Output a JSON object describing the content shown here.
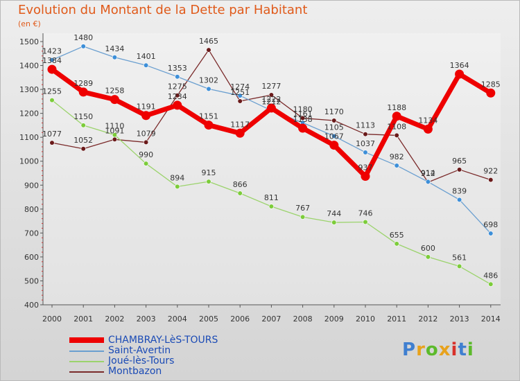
{
  "title": "Evolution du Montant de la Dette par Habitant",
  "subtitle": "(en €)",
  "logo": {
    "text": "Proxiti",
    "colors": [
      "#3f7fd0",
      "#e8a21c",
      "#5cba2b",
      "#e8a21c",
      "#d8302a",
      "#3f7fd0",
      "#5cba2b"
    ]
  },
  "chart_data": {
    "type": "line",
    "x": [
      "2000",
      "2001",
      "2002",
      "2003",
      "2004",
      "2005",
      "2006",
      "2007",
      "2008",
      "2009",
      "2010",
      "2011",
      "2012",
      "2013",
      "2014"
    ],
    "ylim": [
      400,
      1500
    ],
    "yticks": [
      400,
      500,
      600,
      700,
      800,
      900,
      1000,
      1100,
      1200,
      1300,
      1400,
      1500
    ],
    "grid": false,
    "legend_position": "bottom-left",
    "series": [
      {
        "name": "CHAMBRAY-LèS-TOURS",
        "color": "#ee0000",
        "marker_color": "#ee0000",
        "values": [
          1384,
          1289,
          1258,
          1191,
          1234,
          1151,
          1117,
          1222,
          1138,
          1067,
          937,
          1188,
          1134,
          1364,
          1285
        ],
        "labels": [
          "1384",
          "1289",
          "1258",
          "1191",
          "1234",
          "1151",
          "1117",
          "1222",
          "1138",
          "1067",
          "937",
          "1188",
          "1134",
          "1364",
          "1285"
        ]
      },
      {
        "name": "Saint-Avertin",
        "color": "#6a9fd0",
        "marker_color": "#3d8fd8",
        "values": [
          1423,
          1480,
          1434,
          1401,
          1353,
          1302,
          1274,
          1212,
          1161,
          1105,
          1037,
          982,
          914,
          839,
          698
        ],
        "labels": [
          "1423",
          "1480",
          "1434",
          "1401",
          "1353",
          "1302",
          "1274",
          "1212",
          "1161",
          "1105",
          "1037",
          "982",
          "914",
          "839",
          "698"
        ]
      },
      {
        "name": "Joué-lès-Tours",
        "color": "#9bd36c",
        "marker_color": "#7ccc3a",
        "values": [
          1255,
          1150,
          1110,
          990,
          894,
          915,
          866,
          811,
          767,
          744,
          746,
          655,
          600,
          561,
          486
        ],
        "labels": [
          "1255",
          "1150",
          "1110",
          "990",
          "894",
          "915",
          "866",
          "811",
          "767",
          "744",
          "746",
          "655",
          "600",
          "561",
          "486"
        ]
      },
      {
        "name": "Montbazon",
        "color": "#7a2a2a",
        "marker_color": "#6a1a1a",
        "values": [
          1077,
          1052,
          1091,
          1079,
          1275,
          1465,
          1251,
          1277,
          1180,
          1170,
          1113,
          1108,
          912,
          965,
          922
        ],
        "labels": [
          "1077",
          "1052",
          "1091",
          "1079",
          "1275",
          "1465",
          "1251",
          "1277",
          "1180",
          "1170",
          "1113",
          "1108",
          "912",
          "965",
          "922"
        ]
      }
    ]
  }
}
